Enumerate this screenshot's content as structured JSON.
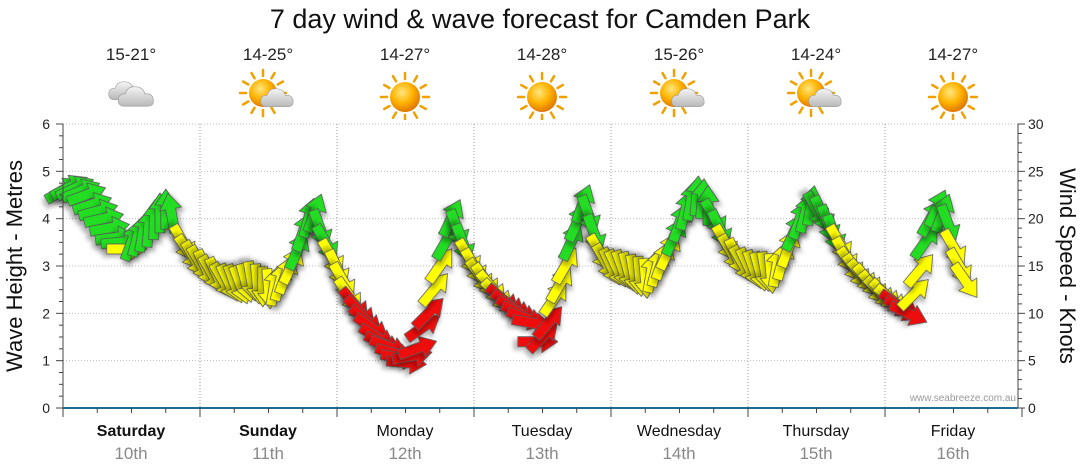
{
  "title": "7 day wind & wave forecast for Camden Park",
  "watermark": "www.seabreeze.com.au",
  "colors": {
    "strong": "#ee1111",
    "moderate": "#ffff00",
    "light": "#22dd22"
  },
  "days": [
    {
      "name": "Saturday",
      "date": "10th",
      "bold": true,
      "temp": "15-21°",
      "icon": "cloud-icon"
    },
    {
      "name": "Sunday",
      "date": "11th",
      "bold": true,
      "temp": "14-25°",
      "icon": "sun-cloud-icon"
    },
    {
      "name": "Monday",
      "date": "12th",
      "bold": false,
      "temp": "14-27°",
      "icon": "sun-icon"
    },
    {
      "name": "Tuesday",
      "date": "13th",
      "bold": false,
      "temp": "14-28°",
      "icon": "sun-icon"
    },
    {
      "name": "Wednesday",
      "date": "14th",
      "bold": false,
      "temp": "15-26°",
      "icon": "sun-cloud-icon"
    },
    {
      "name": "Thursday",
      "date": "15th",
      "bold": false,
      "temp": "14-24°",
      "icon": "sun-cloud-icon"
    },
    {
      "name": "Friday",
      "date": "16th",
      "bold": false,
      "temp": "14-27°",
      "icon": "sun-icon"
    }
  ],
  "chart_data": {
    "type": "scatter",
    "title": "7 day wind & wave forecast for Camden Park",
    "ylabel_left": "Wave Height - Metres",
    "ylabel_right": "Wind Speed - Knots",
    "y_left_range": [
      0,
      6
    ],
    "y_left_ticks": [
      "0",
      "1",
      "2",
      "3",
      "4",
      "5",
      "6"
    ],
    "y_right_range": [
      0,
      30
    ],
    "y_right_ticks": [
      "0",
      "5",
      "10",
      "15",
      "20",
      "25",
      "30"
    ],
    "x_hours_range": [
      0,
      168
    ],
    "series": [
      {
        "name": "Wind arrows (hour, knots, arrow direction deg, colour)",
        "points": [
          [
            0,
            23.0,
            60,
            "g"
          ],
          [
            1,
            23.3,
            62,
            "g"
          ],
          [
            2,
            23.2,
            65,
            "g"
          ],
          [
            3,
            22.9,
            68,
            "g"
          ],
          [
            4,
            22.5,
            70,
            "g"
          ],
          [
            5,
            21.5,
            72,
            "g"
          ],
          [
            6,
            20.8,
            75,
            "g"
          ],
          [
            7,
            20.0,
            78,
            "g"
          ],
          [
            8,
            19.0,
            80,
            "g"
          ],
          [
            9,
            18.0,
            82,
            "g"
          ],
          [
            10,
            17.5,
            85,
            "g"
          ],
          [
            11,
            16.8,
            90,
            "y"
          ],
          [
            12,
            17.5,
            20,
            "g"
          ],
          [
            13,
            18.0,
            15,
            "g"
          ],
          [
            14,
            18.5,
            10,
            "g"
          ],
          [
            15,
            19.0,
            5,
            "g"
          ],
          [
            16,
            19.8,
            2,
            "g"
          ],
          [
            17,
            20.5,
            0,
            "g"
          ],
          [
            18,
            20.9,
            0,
            "g"
          ],
          [
            19,
            20.5,
            350,
            "g"
          ],
          [
            21,
            17.5,
            150,
            "y"
          ],
          [
            22,
            16.5,
            145,
            "y"
          ],
          [
            23,
            15.8,
            150,
            "y"
          ],
          [
            24,
            15.3,
            150,
            "y"
          ],
          [
            25,
            14.8,
            155,
            "y"
          ],
          [
            26,
            14.3,
            150,
            "y"
          ],
          [
            27,
            14.0,
            155,
            "y"
          ],
          [
            28,
            13.5,
            150,
            "y"
          ],
          [
            29,
            13.3,
            155,
            "y"
          ],
          [
            30,
            13.2,
            160,
            "y"
          ],
          [
            31,
            13.1,
            160,
            "y"
          ],
          [
            32,
            13.3,
            165,
            "y"
          ],
          [
            33,
            13.5,
            170,
            "y"
          ],
          [
            34,
            13.2,
            175,
            "y"
          ],
          [
            35,
            12.9,
            180,
            "y"
          ],
          [
            36,
            12.7,
            175,
            "y"
          ],
          [
            37,
            12.8,
            10,
            "y"
          ],
          [
            38,
            13.3,
            15,
            "y"
          ],
          [
            39,
            14.0,
            20,
            "y"
          ],
          [
            40,
            15.0,
            25,
            "y"
          ],
          [
            41,
            16.5,
            25,
            "g"
          ],
          [
            42,
            18.5,
            20,
            "g"
          ],
          [
            43,
            20.0,
            15,
            "g"
          ],
          [
            44,
            20.5,
            20,
            "g"
          ],
          [
            45,
            19.0,
            160,
            "g"
          ],
          [
            46,
            17.5,
            150,
            "g"
          ],
          [
            47,
            16.0,
            150,
            "y"
          ],
          [
            48,
            14.8,
            155,
            "y"
          ],
          [
            49,
            13.5,
            150,
            "y"
          ],
          [
            50,
            12.0,
            145,
            "y"
          ],
          [
            51,
            11.0,
            140,
            "r"
          ],
          [
            52,
            10.2,
            135,
            "r"
          ],
          [
            53,
            9.3,
            130,
            "r"
          ],
          [
            54,
            8.5,
            125,
            "r"
          ],
          [
            55,
            7.5,
            120,
            "r"
          ],
          [
            56,
            6.8,
            115,
            "r"
          ],
          [
            57,
            6.5,
            110,
            "r"
          ],
          [
            58,
            5.8,
            105,
            "r"
          ],
          [
            59,
            5.3,
            100,
            "r"
          ],
          [
            60,
            4.8,
            95,
            "r"
          ],
          [
            61,
            5.5,
            80,
            "r"
          ],
          [
            62,
            6.3,
            70,
            "r"
          ],
          [
            63,
            8.5,
            55,
            "r"
          ],
          [
            64,
            10.0,
            45,
            "r"
          ],
          [
            65,
            12.5,
            40,
            "y"
          ],
          [
            66,
            15.0,
            35,
            "y"
          ],
          [
            67,
            17.5,
            30,
            "g"
          ],
          [
            68,
            20.0,
            25,
            "g"
          ],
          [
            69,
            19.0,
            160,
            "g"
          ],
          [
            70,
            17.5,
            160,
            "g"
          ],
          [
            71,
            16.0,
            150,
            "y"
          ],
          [
            72,
            15.0,
            150,
            "y"
          ],
          [
            73,
            14.0,
            145,
            "y"
          ],
          [
            74,
            13.5,
            145,
            "y"
          ],
          [
            75,
            12.8,
            140,
            "y"
          ],
          [
            76,
            12.0,
            135,
            "y"
          ],
          [
            77,
            11.5,
            130,
            "r"
          ],
          [
            78,
            11.0,
            125,
            "r"
          ],
          [
            79,
            10.5,
            120,
            "r"
          ],
          [
            80,
            10.0,
            115,
            "r"
          ],
          [
            81,
            9.5,
            110,
            "r"
          ],
          [
            82,
            9.0,
            100,
            "r"
          ],
          [
            83,
            7.0,
            90,
            "r"
          ],
          [
            84,
            7.5,
            45,
            "r"
          ],
          [
            85,
            9.0,
            40,
            "r"
          ],
          [
            86,
            11.5,
            35,
            "y"
          ],
          [
            87,
            13.0,
            30,
            "y"
          ],
          [
            88,
            15.0,
            30,
            "y"
          ],
          [
            89,
            17.5,
            25,
            "g"
          ],
          [
            90,
            19.5,
            25,
            "g"
          ],
          [
            91,
            21.5,
            20,
            "g"
          ],
          [
            92,
            20.5,
            160,
            "g"
          ],
          [
            93,
            18.5,
            160,
            "g"
          ],
          [
            94,
            16.5,
            150,
            "y"
          ],
          [
            95,
            15.5,
            150,
            "y"
          ],
          [
            96,
            15.0,
            155,
            "y"
          ],
          [
            97,
            14.8,
            155,
            "y"
          ],
          [
            98,
            14.7,
            160,
            "y"
          ],
          [
            99,
            14.5,
            165,
            "y"
          ],
          [
            100,
            14.2,
            170,
            "y"
          ],
          [
            101,
            14.0,
            175,
            "y"
          ],
          [
            102,
            13.8,
            175,
            "y"
          ],
          [
            103,
            14.2,
            10,
            "y"
          ],
          [
            104,
            14.8,
            15,
            "y"
          ],
          [
            105,
            15.5,
            20,
            "y"
          ],
          [
            106,
            16.5,
            25,
            "y"
          ],
          [
            107,
            18.0,
            25,
            "g"
          ],
          [
            108,
            19.5,
            20,
            "g"
          ],
          [
            109,
            20.8,
            15,
            "g"
          ],
          [
            110,
            21.8,
            10,
            "g"
          ],
          [
            111,
            22.3,
            5,
            "g"
          ],
          [
            112,
            22.0,
            5,
            "g"
          ],
          [
            113,
            21.3,
            0,
            "g"
          ],
          [
            114,
            20.2,
            150,
            "g"
          ],
          [
            115,
            19.0,
            155,
            "g"
          ],
          [
            116,
            17.5,
            150,
            "y"
          ],
          [
            117,
            16.5,
            150,
            "y"
          ],
          [
            118,
            16.0,
            155,
            "y"
          ],
          [
            119,
            15.3,
            150,
            "y"
          ],
          [
            120,
            15.0,
            155,
            "y"
          ],
          [
            121,
            14.7,
            160,
            "y"
          ],
          [
            122,
            14.5,
            165,
            "y"
          ],
          [
            123,
            14.5,
            170,
            "y"
          ],
          [
            124,
            14.3,
            175,
            "y"
          ],
          [
            125,
            14.8,
            10,
            "y"
          ],
          [
            126,
            15.5,
            15,
            "y"
          ],
          [
            127,
            16.8,
            20,
            "y"
          ],
          [
            128,
            18.5,
            25,
            "g"
          ],
          [
            129,
            19.8,
            20,
            "g"
          ],
          [
            130,
            20.5,
            15,
            "g"
          ],
          [
            131,
            21.3,
            10,
            "g"
          ],
          [
            132,
            21.0,
            150,
            "g"
          ],
          [
            133,
            20.5,
            155,
            "g"
          ],
          [
            134,
            19.5,
            160,
            "g"
          ],
          [
            135,
            18.5,
            160,
            "g"
          ],
          [
            136,
            17.5,
            150,
            "y"
          ],
          [
            137,
            16.2,
            150,
            "y"
          ],
          [
            138,
            15.2,
            145,
            "y"
          ],
          [
            139,
            14.5,
            145,
            "y"
          ],
          [
            140,
            14.0,
            140,
            "y"
          ],
          [
            141,
            13.5,
            140,
            "y"
          ],
          [
            142,
            12.8,
            140,
            "y"
          ],
          [
            143,
            12.3,
            135,
            "y"
          ],
          [
            144,
            12.0,
            135,
            "y"
          ],
          [
            145,
            11.5,
            130,
            "y"
          ],
          [
            146,
            11.0,
            125,
            "r"
          ],
          [
            147,
            10.5,
            120,
            "r"
          ],
          [
            148,
            10.0,
            115,
            "r"
          ],
          [
            149,
            12.0,
            45,
            "y"
          ],
          [
            150,
            14.5,
            40,
            "y"
          ],
          [
            151,
            17.5,
            35,
            "g"
          ],
          [
            152,
            20.0,
            30,
            "g"
          ],
          [
            153,
            21.0,
            25,
            "g"
          ],
          [
            154,
            20.5,
            20,
            "g"
          ],
          [
            155,
            19.5,
            160,
            "g"
          ],
          [
            156,
            17.0,
            150,
            "y"
          ],
          [
            157,
            15.0,
            150,
            "y"
          ],
          [
            158,
            13.5,
            145,
            "y"
          ]
        ]
      }
    ]
  }
}
